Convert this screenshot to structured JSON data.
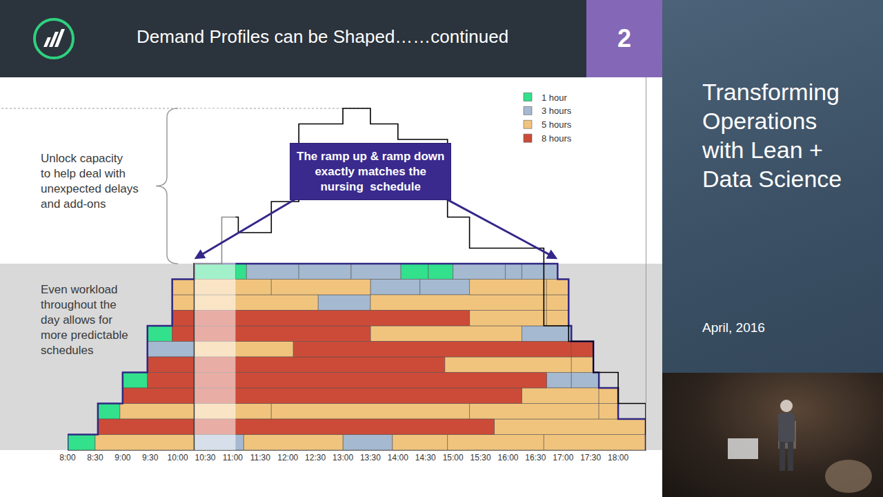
{
  "header": {
    "title": "Demand Profiles can be Shaped……continued",
    "number": "2"
  },
  "side_panel": {
    "title": "Transforming Operations with Lean + Data Science",
    "date": "April, 2016"
  },
  "chart_data": {
    "type": "bar",
    "orientation": "horizontal",
    "legend": "top right",
    "grid": false,
    "tick_labels": "x",
    "xlim": [
      8,
      18.5
    ],
    "xticks": [
      {
        "value": 8,
        "label": "8:00"
      },
      {
        "value": 8.5,
        "label": "8:30"
      },
      {
        "value": 9,
        "label": "9:00"
      },
      {
        "value": 9.5,
        "label": "9:30"
      },
      {
        "value": 10,
        "label": "10:00"
      },
      {
        "value": 10.5,
        "label": "10:30"
      },
      {
        "value": 11,
        "label": "11:00"
      },
      {
        "value": 11.5,
        "label": "11:30"
      },
      {
        "value": 12,
        "label": "12:00"
      },
      {
        "value": 12.5,
        "label": "12:30"
      },
      {
        "value": 13,
        "label": "13:00"
      },
      {
        "value": 13.5,
        "label": "13:30"
      },
      {
        "value": 14,
        "label": "14:00"
      },
      {
        "value": 14.5,
        "label": "14:30"
      },
      {
        "value": 15,
        "label": "15:00"
      },
      {
        "value": 15.5,
        "label": "15:30"
      },
      {
        "value": 16,
        "label": "16:00"
      },
      {
        "value": 16.5,
        "label": "16:30"
      },
      {
        "value": 17,
        "label": "17:00"
      },
      {
        "value": 17.5,
        "label": "17:30"
      },
      {
        "value": 18,
        "label": "18:00"
      }
    ],
    "ylim": [
      0,
      24
    ],
    "series": [
      {
        "name": "1 hour",
        "color": "#33e08c"
      },
      {
        "name": "3 hours",
        "color": "#a5b9d0"
      },
      {
        "name": "5 hours",
        "color": "#f1c47e"
      },
      {
        "name": "8 hours",
        "color": "#cc4b38"
      }
    ],
    "rows": [
      [
        {
          "start": 8,
          "end": 8.5,
          "series": "1 hour"
        },
        {
          "start": 8.5,
          "end": 10.3,
          "series": "5 hours"
        },
        {
          "start": 10.3,
          "end": 11.2,
          "series": "3 hours"
        },
        {
          "start": 11.2,
          "end": 13,
          "series": "5 hours"
        },
        {
          "start": 13,
          "end": 13.9,
          "series": "3 hours"
        },
        {
          "start": 13.9,
          "end": 14.9,
          "series": "5 hours"
        },
        {
          "start": 14.9,
          "end": 16.65,
          "series": "5 hours"
        },
        {
          "start": 16.65,
          "end": 18.5,
          "series": "5 hours"
        }
      ],
      [
        {
          "start": 8.55,
          "end": 15.75,
          "series": "8 hours"
        },
        {
          "start": 15.75,
          "end": 18.5,
          "series": "5 hours"
        }
      ],
      [
        {
          "start": 8.55,
          "end": 8.95,
          "series": "1 hour"
        },
        {
          "start": 8.95,
          "end": 11.7,
          "series": "5 hours"
        },
        {
          "start": 11.7,
          "end": 15.3,
          "series": "5 hours"
        },
        {
          "start": 15.3,
          "end": 17.65,
          "series": "5 hours"
        },
        {
          "start": 17.65,
          "end": 18,
          "series": "5 hours"
        }
      ],
      [
        {
          "start": 9,
          "end": 16.25,
          "series": "8 hours"
        },
        {
          "start": 16.25,
          "end": 17.65,
          "series": "5 hours"
        },
        {
          "start": 17.65,
          "end": 18,
          "series": "5 hours"
        }
      ],
      [
        {
          "start": 9,
          "end": 9.45,
          "series": "1 hour"
        },
        {
          "start": 9.45,
          "end": 16.7,
          "series": "8 hours"
        },
        {
          "start": 16.7,
          "end": 17.15,
          "series": "3 hours"
        },
        {
          "start": 17.15,
          "end": 17.65,
          "series": "3 hours"
        }
      ],
      [
        {
          "start": 9.45,
          "end": 14.85,
          "series": "8 hours"
        },
        {
          "start": 14.85,
          "end": 17.15,
          "series": "5 hours"
        },
        {
          "start": 17.15,
          "end": 17.55,
          "series": "5 hours"
        }
      ],
      [
        {
          "start": 9.45,
          "end": 10.3,
          "series": "3 hours"
        },
        {
          "start": 10.3,
          "end": 12.1,
          "series": "5 hours"
        },
        {
          "start": 12.1,
          "end": 17.15,
          "series": "8 hours"
        },
        {
          "start": 17.15,
          "end": 17.55,
          "series": "8 hours"
        }
      ],
      [
        {
          "start": 9.45,
          "end": 9.9,
          "series": "1 hour"
        },
        {
          "start": 9.9,
          "end": 13.5,
          "series": "8 hours"
        },
        {
          "start": 13.5,
          "end": 16.25,
          "series": "5 hours"
        },
        {
          "start": 16.25,
          "end": 17.15,
          "series": "3 hours"
        }
      ],
      [
        {
          "start": 9.9,
          "end": 15.3,
          "series": "8 hours"
        },
        {
          "start": 15.3,
          "end": 16.7,
          "series": "5 hours"
        },
        {
          "start": 16.7,
          "end": 17.1,
          "series": "5 hours"
        }
      ],
      [
        {
          "start": 9.9,
          "end": 12.55,
          "series": "5 hours"
        },
        {
          "start": 12.55,
          "end": 13.5,
          "series": "3 hours"
        },
        {
          "start": 13.5,
          "end": 16.7,
          "series": "5 hours"
        },
        {
          "start": 16.7,
          "end": 17.1,
          "series": "5 hours"
        }
      ],
      [
        {
          "start": 9.9,
          "end": 11.7,
          "series": "5 hours"
        },
        {
          "start": 11.7,
          "end": 13.5,
          "series": "5 hours"
        },
        {
          "start": 13.5,
          "end": 14.4,
          "series": "3 hours"
        },
        {
          "start": 14.4,
          "end": 15.3,
          "series": "3 hours"
        },
        {
          "start": 15.3,
          "end": 16.7,
          "series": "5 hours"
        },
        {
          "start": 16.7,
          "end": 17.1,
          "series": "5 hours"
        }
      ],
      [
        {
          "start": 10.3,
          "end": 11.05,
          "series": "1 hour"
        },
        {
          "start": 11.05,
          "end": 11.25,
          "series": "1 hour"
        },
        {
          "start": 11.25,
          "end": 12.2,
          "series": "3 hours"
        },
        {
          "start": 12.2,
          "end": 13.15,
          "series": "3 hours"
        },
        {
          "start": 13.15,
          "end": 14.05,
          "series": "3 hours"
        },
        {
          "start": 14.05,
          "end": 14.55,
          "series": "1 hour"
        },
        {
          "start": 14.55,
          "end": 15,
          "series": "1 hour"
        },
        {
          "start": 15,
          "end": 15.95,
          "series": "3 hours"
        },
        {
          "start": 15.95,
          "end": 16.25,
          "series": "3 hours"
        },
        {
          "start": 16.25,
          "end": 16.9,
          "series": "3 hours"
        }
      ]
    ],
    "profile": {
      "x": [
        10.3,
        10.3,
        10.8,
        11.1,
        11.7,
        12.2,
        13.0,
        13.5,
        14.0,
        14.9,
        15.3,
        16.65,
        17.1,
        17.55,
        18.0,
        18.5
      ],
      "y": [
        0,
        12,
        15,
        14,
        16,
        21,
        22,
        21,
        20,
        15,
        13,
        8,
        7,
        5,
        3,
        1
      ],
      "color": "#000000",
      "line_style": "step"
    },
    "highlight": {
      "start": 10.3,
      "end": 11.05
    },
    "annotations": {
      "unlock_capacity": "Unlock capacity to help deal with unexpected delays and add-ons",
      "even_workload": "Even workload throughout the day allows for more predictable schedules",
      "ramp": "The ramp up & ramp down exactly matches the nursing  schedule"
    }
  }
}
